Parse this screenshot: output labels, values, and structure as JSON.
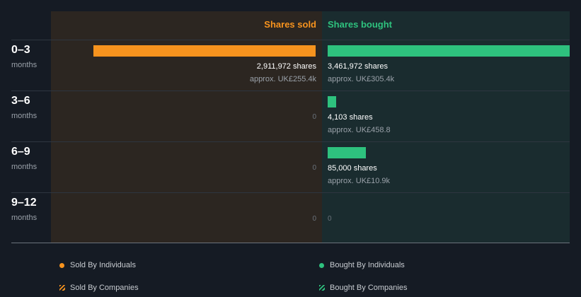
{
  "chart_data": {
    "type": "bar",
    "orientation": "horizontal-diverging",
    "headers": {
      "sold": "Shares sold",
      "bought": "Shares bought"
    },
    "categories": [
      {
        "period": "0–3",
        "unit": "months"
      },
      {
        "period": "3–6",
        "unit": "months"
      },
      {
        "period": "6–9",
        "unit": "months"
      },
      {
        "period": "9–12",
        "unit": "months"
      }
    ],
    "series": [
      {
        "name": "Shares sold",
        "values": [
          2911972,
          0,
          0,
          0
        ],
        "labels": [
          "2,911,972 shares",
          "0",
          "0",
          "0"
        ],
        "approx": [
          "approx. UK£255.4k",
          "",
          "",
          ""
        ]
      },
      {
        "name": "Shares bought",
        "values": [
          3461972,
          4103,
          85000,
          0
        ],
        "labels": [
          "3,461,972 shares",
          "4,103 shares",
          "85,000 shares",
          "0"
        ],
        "approx": [
          "approx. UK£305.4k",
          "approx. UK£458.8",
          "approx. UK£10.9k",
          ""
        ]
      }
    ],
    "legend": [
      "Sold By Individuals",
      "Bought By Individuals",
      "Sold By Companies",
      "Bought By Companies"
    ]
  },
  "colors": {
    "sold": "#f7931e",
    "bought": "#2ec27e"
  }
}
